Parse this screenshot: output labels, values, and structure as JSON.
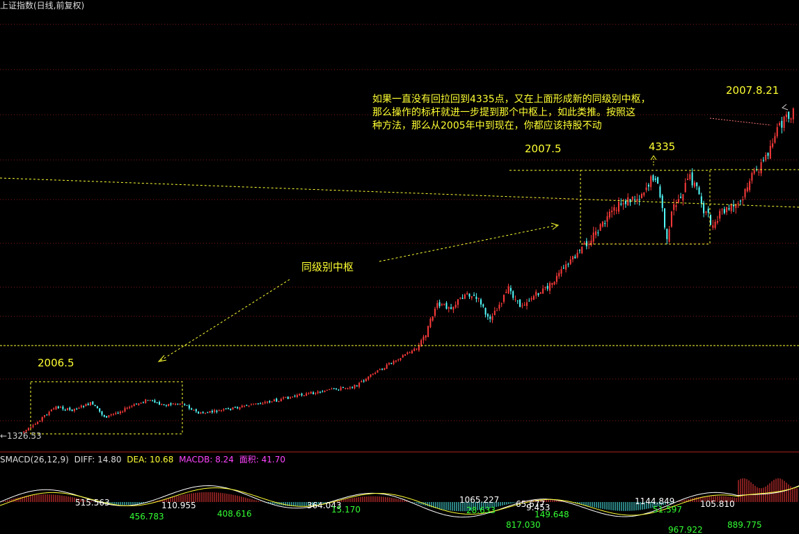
{
  "header": {
    "title": "上证指数(日线,前复权)"
  },
  "annotations": {
    "box1_label": "2006.5",
    "box2_label": "2007.5",
    "peak_label": "4335",
    "end_label": "2007.8.21",
    "hub_label": "同级别中枢",
    "start_low": "←1326.53",
    "note_lines": [
      "如果一直没有回拉回到4335点，又在上面形成新的同级别中枢，",
      "那么操作的标杆就进一步提到那个中枢上，如此类推。按照这",
      "种方法，那么从2005年中到现在，你都应该持股不动"
    ]
  },
  "macd_header": {
    "name": "SMACD(26,12,9)",
    "diff": "DIFF: 14.80",
    "dea": "DEA: 10.68",
    "macdb": "MACDB: 8.24",
    "area": "面积: 41.70"
  },
  "colors": {
    "up": "#ff3b3b",
    "down": "#54ffff",
    "guide": "#ffff33",
    "grid": "#8a1c1c",
    "macdb": "#ff44ff",
    "green": "#33ff33"
  },
  "chart_data": {
    "type": "candlestick",
    "start_low": 1326.53,
    "peak": 4335,
    "key_points": [
      {
        "date": "2006.5",
        "label": "2006.5"
      },
      {
        "date": "2007.5",
        "label": "2007.5"
      },
      {
        "date": "2007.8.21",
        "label": "2007.8.21"
      }
    ],
    "macd_area_labels": [
      {
        "value": "515.563",
        "color": "white"
      },
      {
        "value": "456.783",
        "color": "green"
      },
      {
        "value": "110.955",
        "color": "white"
      },
      {
        "value": "408.616",
        "color": "green"
      },
      {
        "value": "364.043",
        "color": "white"
      },
      {
        "value": "15.170",
        "color": "green"
      },
      {
        "value": "1065.227",
        "color": "white"
      },
      {
        "value": "28.633",
        "color": "green"
      },
      {
        "value": "817.030",
        "color": "green"
      },
      {
        "value": "65.677",
        "color": "white"
      },
      {
        "value": "9.453",
        "color": "white"
      },
      {
        "value": "149.648",
        "color": "green"
      },
      {
        "value": "1144.849",
        "color": "white"
      },
      {
        "value": "51.597",
        "color": "green"
      },
      {
        "value": "967.922",
        "color": "green"
      },
      {
        "value": "105.810",
        "color": "white"
      },
      {
        "value": "889.775",
        "color": "green"
      }
    ]
  }
}
